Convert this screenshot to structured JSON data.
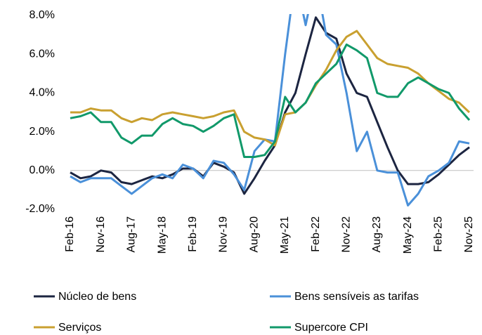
{
  "chart_data": {
    "type": "line",
    "categories": [
      "Feb-16",
      null,
      null,
      "Nov-16",
      null,
      null,
      "Aug-17",
      null,
      null,
      "May-18",
      null,
      null,
      "Feb-19",
      null,
      null,
      "Nov-19",
      null,
      null,
      "Aug-20",
      null,
      null,
      "May-21",
      null,
      null,
      "Feb-22",
      null,
      null,
      "Nov-22",
      null,
      null,
      "Aug-23",
      null,
      null,
      "May-24",
      null,
      null,
      "Feb-25",
      null,
      null,
      "Nov-25"
    ],
    "series": [
      {
        "name": "Núcleo de bens",
        "color": "#1c2541",
        "values": [
          -0.1,
          -0.4,
          -0.3,
          0.0,
          -0.1,
          -0.6,
          -0.7,
          -0.5,
          -0.3,
          -0.4,
          -0.2,
          0.1,
          0.1,
          -0.3,
          0.4,
          0.2,
          -0.1,
          -1.2,
          -0.4,
          0.5,
          1.3,
          3.0,
          4.0,
          6.0,
          7.9,
          7.1,
          6.8,
          5.0,
          4.0,
          3.8,
          2.5,
          1.2,
          0.0,
          -0.7,
          -0.7,
          -0.6,
          -0.2,
          0.3,
          0.8,
          1.2
        ]
      },
      {
        "name": "Bens sensíveis as tarifas",
        "color": "#4a90d9",
        "values": [
          -0.3,
          -0.6,
          -0.4,
          -0.4,
          -0.4,
          -0.8,
          -1.2,
          -0.8,
          -0.4,
          -0.2,
          -0.4,
          0.3,
          0.1,
          -0.4,
          0.5,
          0.4,
          -0.2,
          -1.0,
          1.0,
          1.6,
          1.5,
          6.0,
          10,
          7.5,
          10,
          7.0,
          6.5,
          4.0,
          1.0,
          2.0,
          0.0,
          -0.1,
          -0.1,
          -1.8,
          -1.2,
          -0.3,
          0.0,
          0.4,
          1.5,
          1.4
        ]
      },
      {
        "name": "Serviços",
        "color": "#c9a030",
        "values": [
          3.0,
          3.0,
          3.2,
          3.1,
          3.1,
          2.7,
          2.5,
          2.7,
          2.6,
          2.9,
          3.0,
          2.9,
          2.8,
          2.7,
          2.8,
          3.0,
          3.1,
          2.0,
          1.7,
          1.6,
          1.3,
          2.9,
          3.0,
          3.5,
          4.4,
          5.2,
          6.2,
          6.9,
          7.2,
          6.5,
          5.8,
          5.5,
          5.4,
          5.3,
          5.0,
          4.5,
          4.1,
          3.7,
          3.5,
          3.0
        ]
      },
      {
        "name": "Supercore CPI",
        "color": "#11996a",
        "values": [
          2.7,
          2.8,
          3.0,
          2.5,
          2.5,
          1.7,
          1.4,
          1.8,
          1.8,
          2.4,
          2.7,
          2.4,
          2.3,
          2.0,
          2.3,
          2.7,
          2.9,
          0.7,
          0.7,
          0.8,
          1.5,
          3.8,
          3.0,
          3.5,
          4.5,
          5.0,
          5.5,
          6.5,
          6.2,
          5.8,
          4.0,
          3.8,
          3.8,
          4.5,
          4.8,
          4.5,
          4.2,
          4.0,
          3.2,
          2.6
        ]
      }
    ],
    "ylim": [
      -2,
      8
    ],
    "yticks": [
      {
        "value": -2,
        "label": "-2.0%"
      },
      {
        "value": 0,
        "label": "0.0%"
      },
      {
        "value": 2,
        "label": "2.0%"
      },
      {
        "value": 4,
        "label": "4.0%"
      },
      {
        "value": 6,
        "label": "6.0%"
      },
      {
        "value": 8,
        "label": "8.0%"
      }
    ],
    "grid": false
  }
}
